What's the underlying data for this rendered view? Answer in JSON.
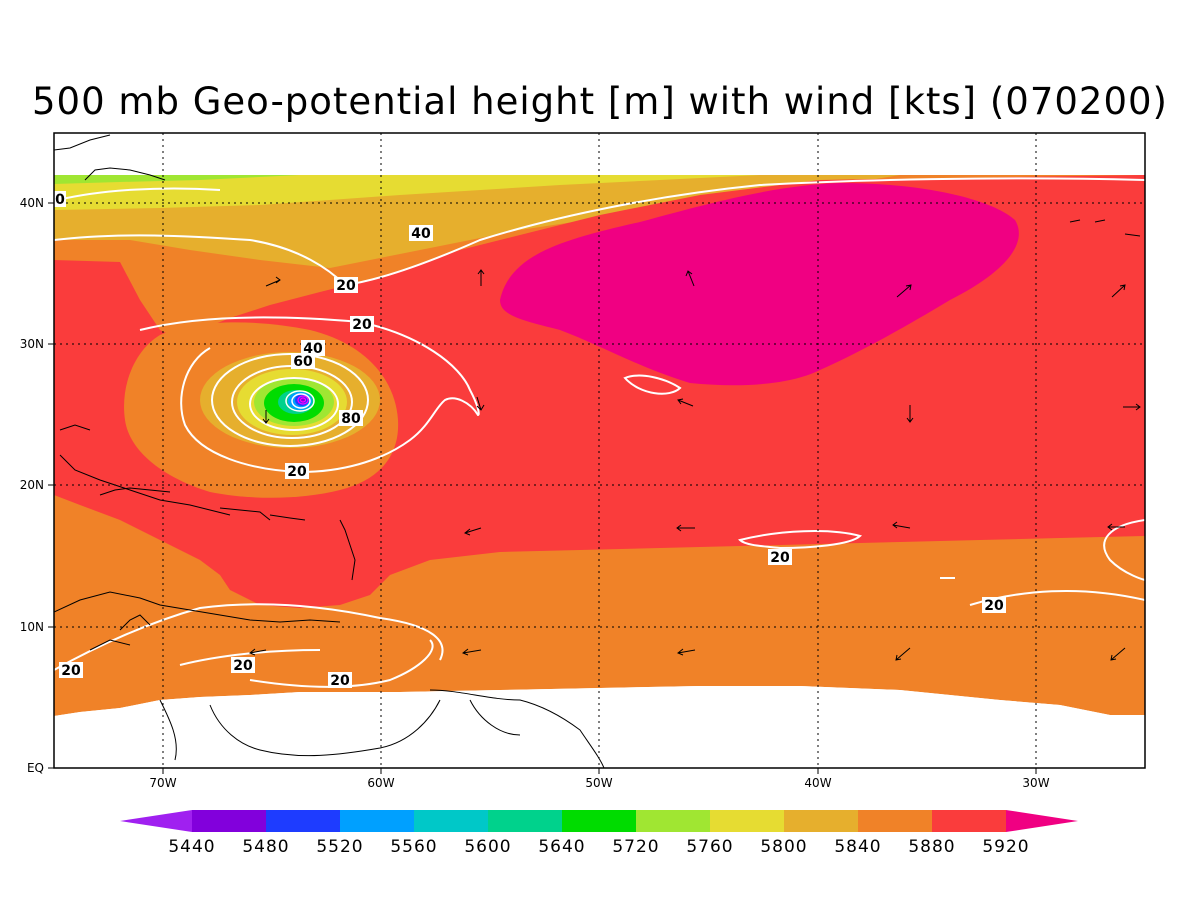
{
  "title": "500 mb Geo-potential height [m] with wind [kts] (070200)",
  "map": {
    "x_ticks": [
      "70W",
      "60W",
      "50W",
      "40W",
      "30W"
    ],
    "y_ticks": [
      "EQ",
      "10N",
      "20N",
      "30N",
      "40N"
    ],
    "contour_labels": [
      "40",
      "20",
      "20",
      "40",
      "60",
      "80",
      "20",
      "20",
      "20",
      "20",
      "20",
      "20"
    ],
    "edge_label": "0"
  },
  "colorbar": {
    "levels": [
      "5440",
      "5480",
      "5520",
      "5560",
      "5600",
      "5640",
      "5720",
      "5760",
      "5800",
      "5840",
      "5880",
      "5920"
    ],
    "colors": [
      "#a020f0",
      "#8200dc",
      "#1e3cff",
      "#00a0ff",
      "#00c8c8",
      "#00d28c",
      "#00dc00",
      "#a0e632",
      "#e6dc32",
      "#e6af2d",
      "#f08228",
      "#fa3c3c",
      "#f00082"
    ]
  },
  "colors": {
    "c5880": "#f08228",
    "c5920": "#fa3c3c",
    "c5960": "#f00082",
    "c5840": "#e6af2d",
    "c5800": "#e6dc32",
    "c5760": "#a0e632",
    "c5720": "#00dc00"
  }
}
